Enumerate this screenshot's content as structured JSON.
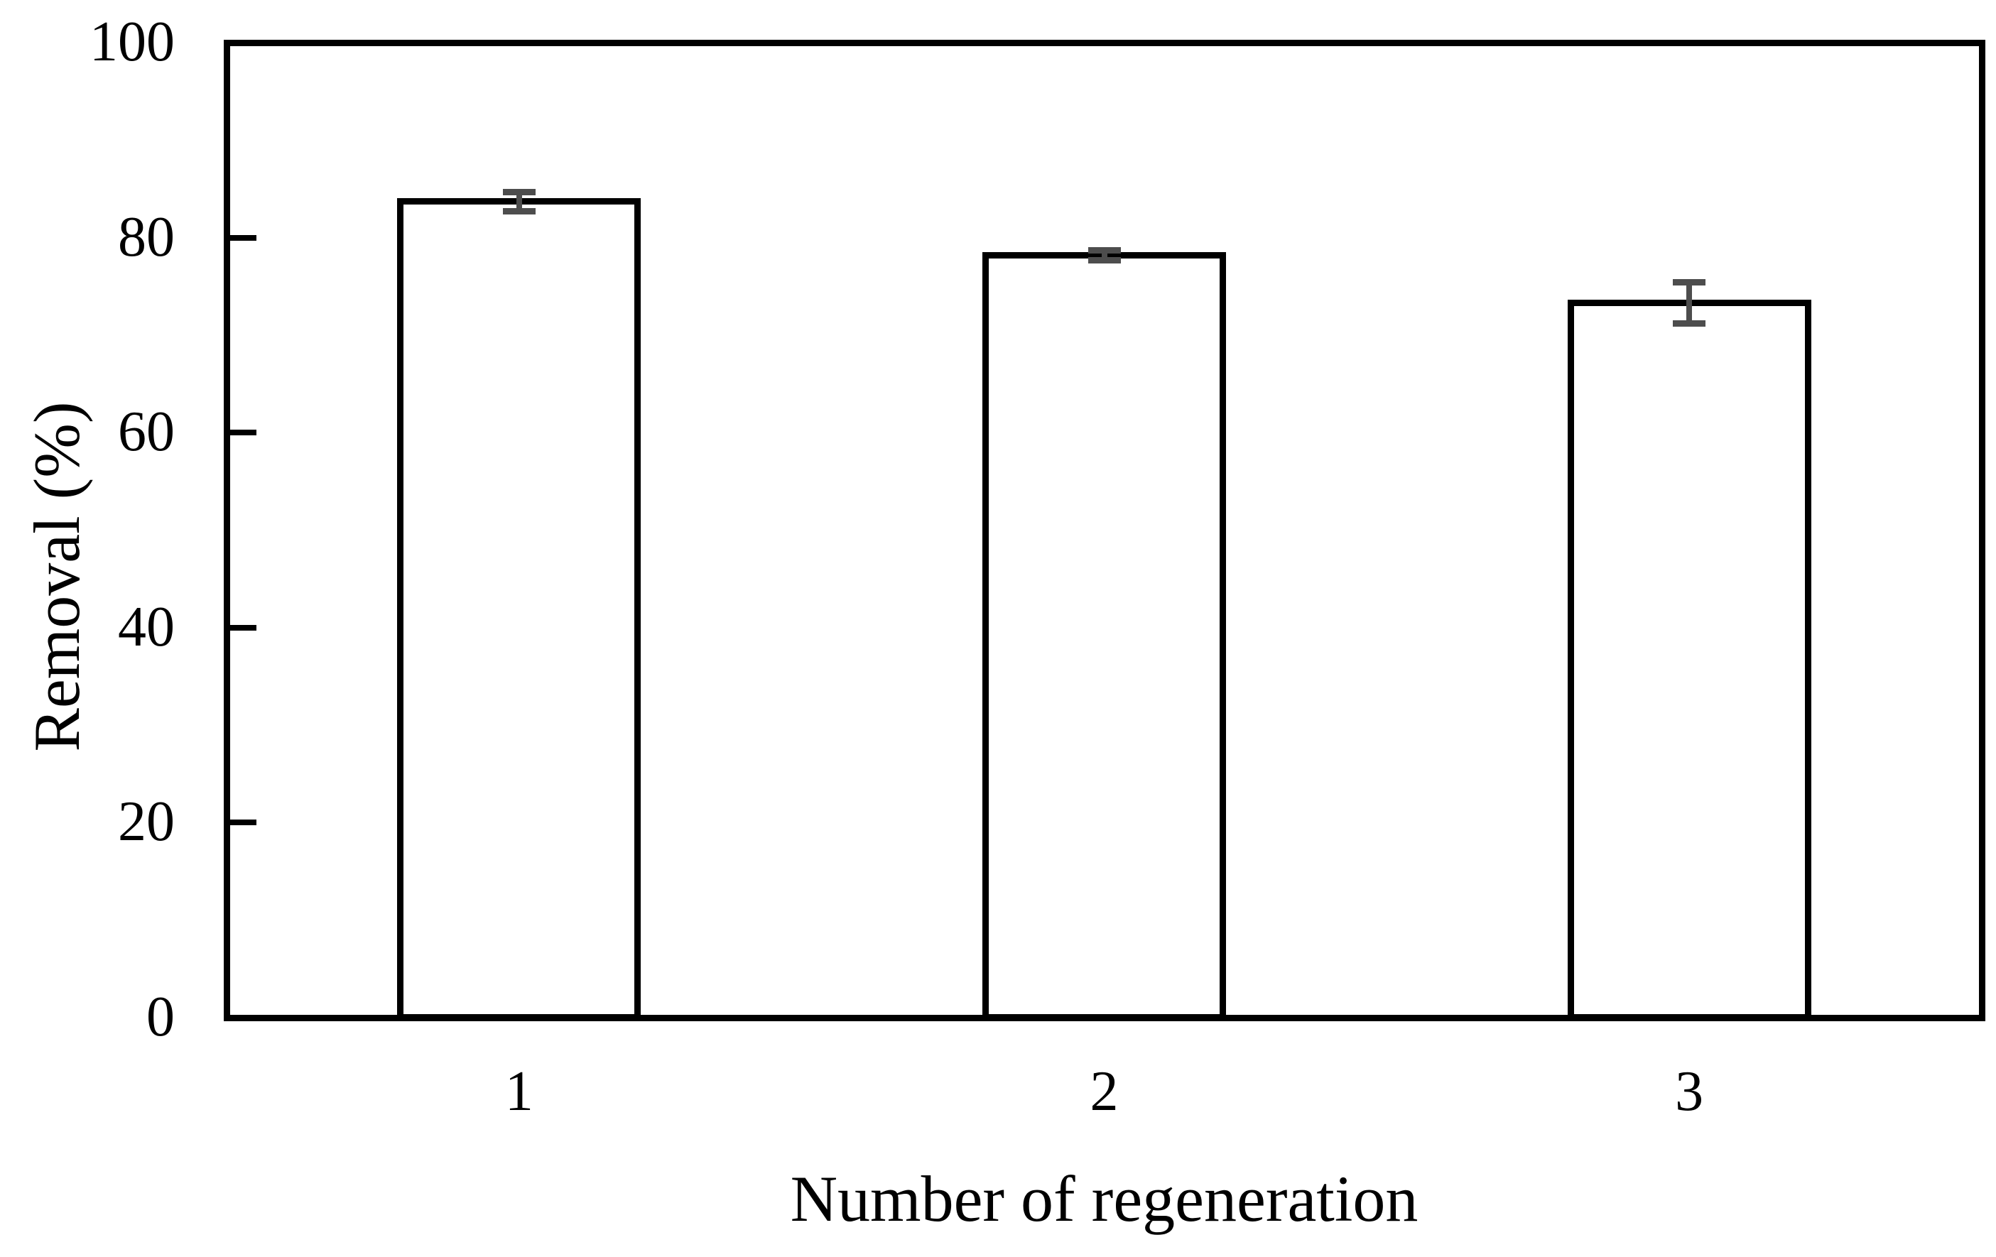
{
  "chart_data": {
    "type": "bar",
    "title": "",
    "categories": [
      "1",
      "2",
      "3"
    ],
    "values": [
      83.7,
      78.2,
      73.3
    ],
    "error_bars": [
      1.0,
      0.5,
      2.1
    ],
    "xlabel": "Number of regeneration",
    "ylabel": "Removal (%)",
    "ylim": [
      0,
      100
    ],
    "yticks": [
      0,
      20,
      40,
      60,
      80,
      100
    ],
    "grid": false,
    "legend": false,
    "bar_fill_color": "#ffffff",
    "bar_outline_color": "#000000",
    "error_bar_color": "#4d4d4d",
    "axis_color": "#000000",
    "background_color": "#ffffff",
    "tick_style": "inside-left"
  }
}
